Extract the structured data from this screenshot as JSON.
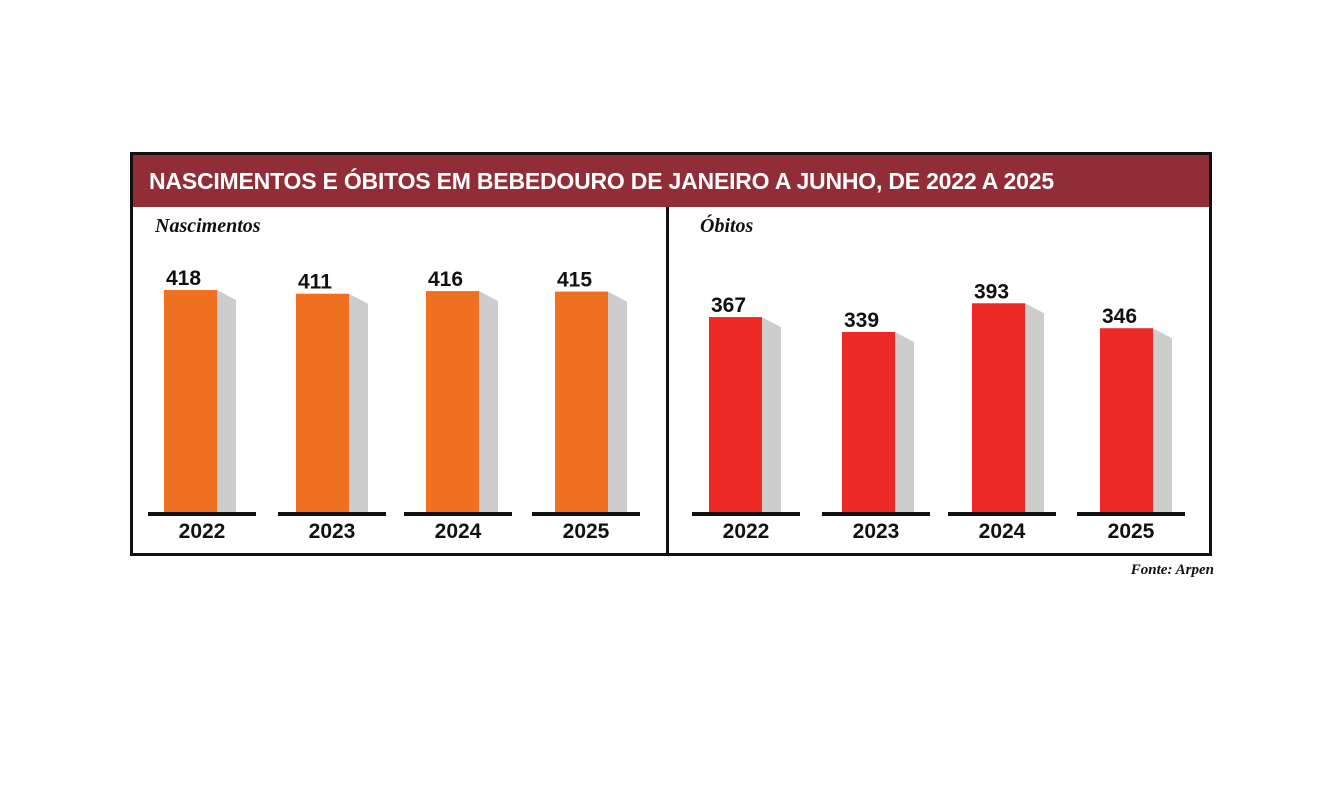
{
  "title": "NASCIMENTOS E ÓBITOS EM BEBEDOURO DE JANEIRO A JUNHO, DE 2022 A 2025",
  "source": "Fonte: Arpen",
  "colors": {
    "title_bg": "#912d36",
    "births_bar": "#f07022",
    "deaths_bar": "#eb2a26",
    "shadow": "#cdcdcd",
    "axis": "#111111"
  },
  "chart_data": [
    {
      "type": "bar",
      "title": "Nascimentos",
      "categories": [
        "2022",
        "2023",
        "2024",
        "2025"
      ],
      "values": [
        418,
        411,
        416,
        415
      ],
      "value_labels": [
        "418",
        "411",
        "416",
        "415"
      ],
      "ylim": [
        0,
        430
      ]
    },
    {
      "type": "bar",
      "title": "Óbitos",
      "categories": [
        "2022",
        "2023",
        "2024",
        "2025"
      ],
      "values": [
        367,
        339,
        393,
        346
      ],
      "value_labels": [
        "367",
        "339",
        "393",
        "346"
      ],
      "ylim": [
        0,
        430
      ]
    }
  ]
}
